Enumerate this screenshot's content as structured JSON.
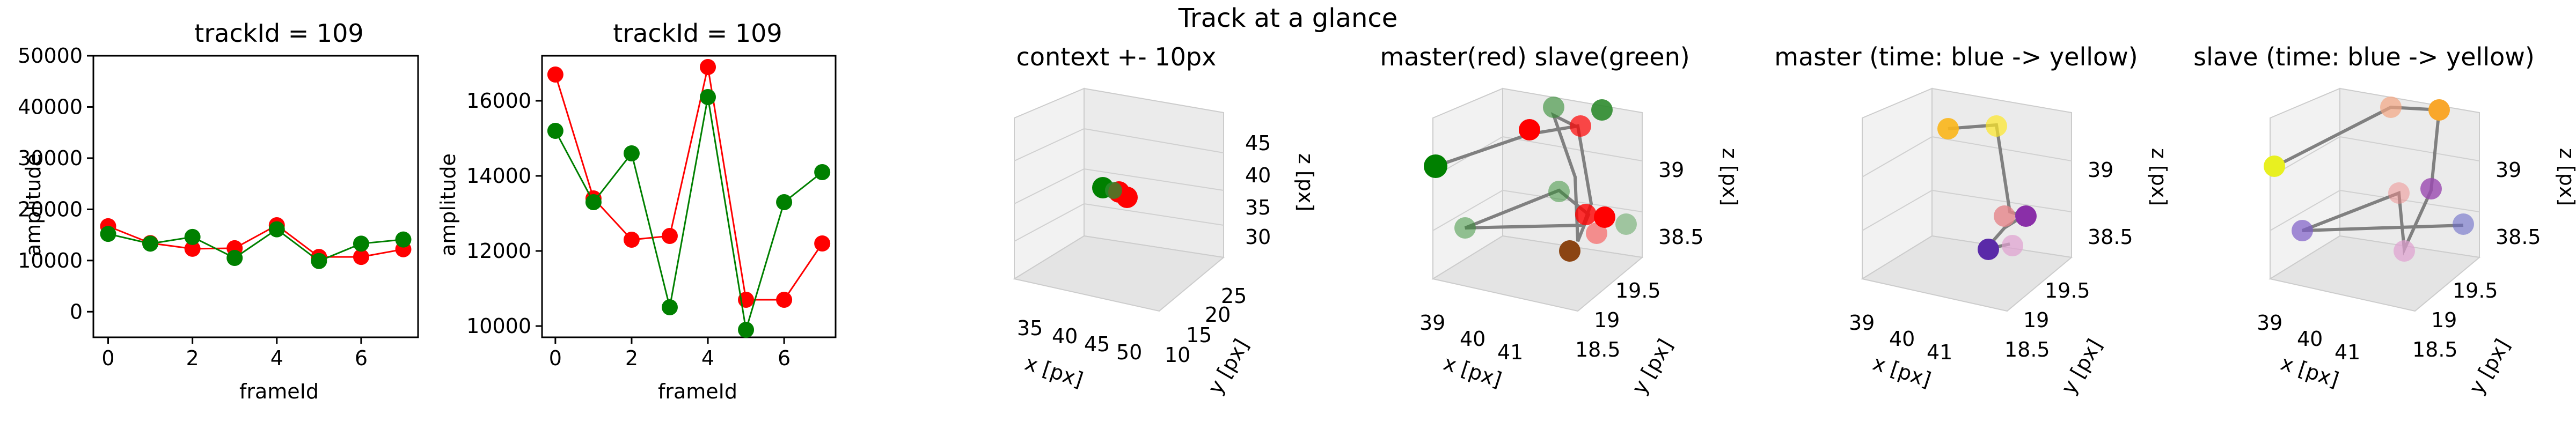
{
  "figure": {
    "suptitle": "Track at a glance"
  },
  "chart_data": [
    {
      "type": "line",
      "title": "trackId = 109",
      "xlabel": "frameId",
      "ylabel": "amplitude",
      "xlim": [
        -0.35,
        7.35
      ],
      "ylim": [
        -5000,
        50000
      ],
      "xticks": [
        0,
        2,
        4,
        6
      ],
      "yticks": [
        0,
        10000,
        20000,
        30000,
        40000,
        50000
      ],
      "x": [
        0,
        1,
        2,
        3,
        4,
        5,
        6,
        7
      ],
      "series": [
        {
          "color": "#ff0000",
          "values": [
            16700,
            13400,
            12300,
            12400,
            16900,
            10700,
            10700,
            12200
          ]
        },
        {
          "color": "#008000",
          "values": [
            15200,
            13300,
            14600,
            10500,
            16100,
            9900,
            13300,
            14100
          ]
        }
      ]
    },
    {
      "type": "line",
      "title": "trackId = 109",
      "xlabel": "frameId",
      "ylabel": "amplitude",
      "xlim": [
        -0.35,
        7.35
      ],
      "ylim": [
        9700,
        17200
      ],
      "xticks": [
        0,
        2,
        4,
        6
      ],
      "yticks": [
        10000,
        12000,
        14000,
        16000
      ],
      "x": [
        0,
        1,
        2,
        3,
        4,
        5,
        6,
        7
      ],
      "series": [
        {
          "color": "#ff0000",
          "values": [
            16700,
            13400,
            12300,
            12400,
            16900,
            10700,
            10700,
            12200
          ]
        },
        {
          "color": "#008000",
          "values": [
            15200,
            13300,
            14600,
            10500,
            16100,
            9900,
            13300,
            14100
          ]
        }
      ]
    },
    {
      "type": "scatter3d",
      "title": "context +- 10px",
      "xlabel": "x [px]",
      "ylabel": "y [px]",
      "zlabel": "z [px]",
      "xticks": [
        35,
        40,
        45,
        50
      ],
      "yticks": [
        10,
        15,
        20,
        25
      ],
      "zticks": [
        30,
        35,
        40,
        45
      ],
      "note": "track points clustered around x~40, y~19, z~39 (red and green markers)"
    },
    {
      "type": "scatter3d",
      "title": "master(red) slave(green)",
      "xlabel": "x [px]",
      "ylabel": "y [px]",
      "zlabel": "z [px]",
      "xticks": [
        39,
        40,
        41
      ],
      "yticks": [
        18.5,
        19.0,
        19.5
      ],
      "zticks": [
        38.5,
        39.0
      ],
      "colors": {
        "master": "#ff0000",
        "slave": "#008000",
        "link": "#808080"
      }
    },
    {
      "type": "scatter3d",
      "title": "master (time: blue -> yellow)",
      "xlabel": "x [px]",
      "ylabel": "y [px]",
      "zlabel": "z [px]",
      "xticks": [
        39,
        40,
        41
      ],
      "yticks": [
        18.5,
        19.0,
        19.5
      ],
      "zticks": [
        38.5,
        39.0
      ],
      "colormap": [
        "#440154",
        "#fde725"
      ]
    },
    {
      "type": "scatter3d",
      "title": "slave (time: blue -> yellow)",
      "xlabel": "x [px]",
      "ylabel": "y [px]",
      "zlabel": "z [px]",
      "xticks": [
        39,
        40,
        41
      ],
      "yticks": [
        18.5,
        19.0,
        19.5
      ],
      "zticks": [
        38.5,
        39.0
      ],
      "colormap": [
        "#440154",
        "#fde725"
      ]
    }
  ]
}
